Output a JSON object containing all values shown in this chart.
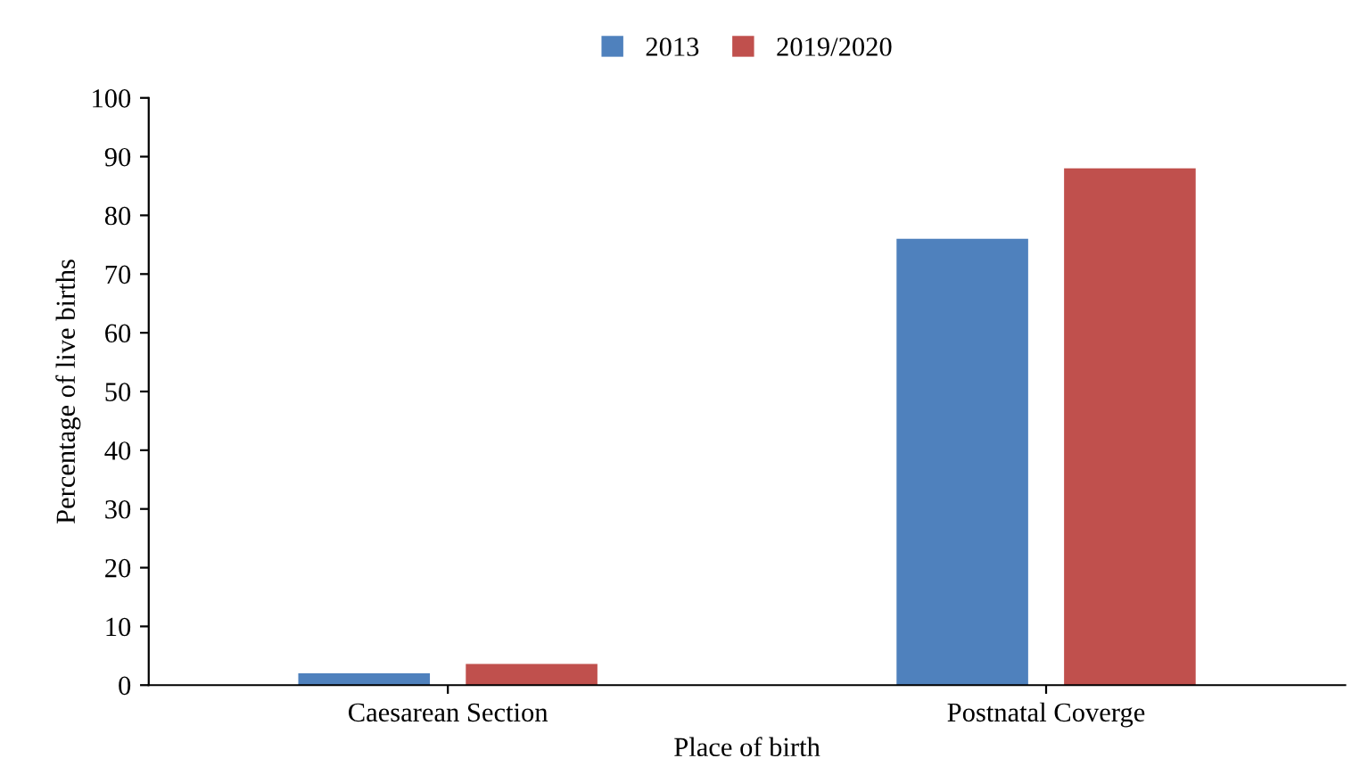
{
  "chart_data": {
    "type": "bar",
    "xlabel": "Place of birth",
    "ylabel": "Percentage of live births",
    "categories": [
      "Caesarean Section",
      "Postnatal Coverge"
    ],
    "series": [
      {
        "name": "2013",
        "color": "#4f81bd",
        "values": [
          2,
          76
        ]
      },
      {
        "name": "2019/2020",
        "color": "#c0504d",
        "values": [
          3.6,
          88
        ]
      }
    ],
    "ylim": [
      0,
      100
    ],
    "yticks": [
      0,
      10,
      20,
      30,
      40,
      50,
      60,
      70,
      80,
      90,
      100
    ],
    "grid": false,
    "legend": "top"
  }
}
